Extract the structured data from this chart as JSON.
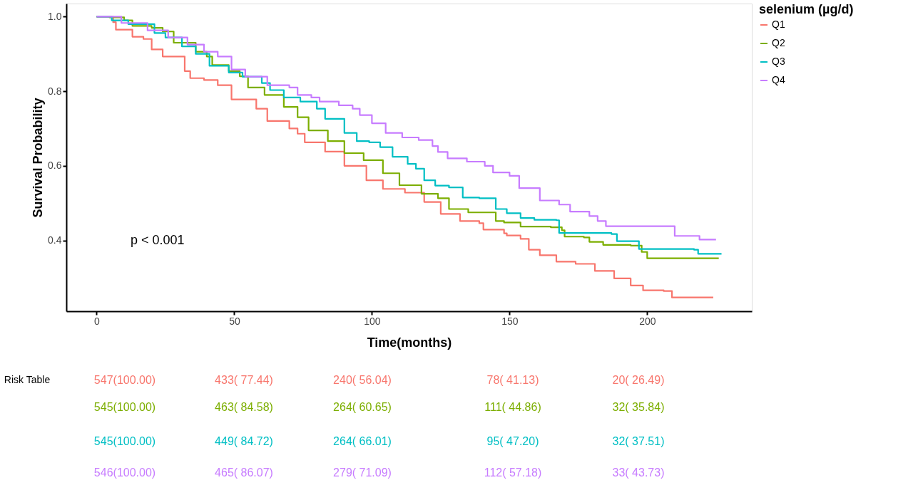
{
  "chart_data": {
    "type": "step",
    "xlabel": "Time(months)",
    "ylabel": "Survival Probability",
    "legend_title": "selenium (µg/d)",
    "legend": "right",
    "grid": false,
    "xlim": [
      -11,
      238
    ],
    "xticks": [
      0,
      50,
      100,
      150,
      200
    ],
    "ylim": [
      0.21,
      1.035
    ],
    "yticks": [
      {
        "value": 0.4,
        "label": "0.4"
      },
      {
        "value": 0.6,
        "label": "0.6"
      },
      {
        "value": 0.8,
        "label": "0.8"
      },
      {
        "value": 1.0,
        "label": "1.0"
      }
    ],
    "series": [
      {
        "name": "Q1",
        "color": "#f8766d",
        "x": [
          0,
          6,
          7,
          13,
          17,
          20,
          24,
          32,
          34,
          39,
          44,
          49,
          58,
          62,
          70,
          73,
          75.6,
          83,
          90,
          98,
          104,
          112,
          119,
          125,
          132,
          139,
          140.5,
          148,
          149,
          154,
          157,
          161,
          167,
          174,
          181,
          188,
          194,
          198.5,
          206,
          209,
          224
        ],
        "values": [
          1.0,
          0.985,
          0.965,
          0.946,
          0.94,
          0.912,
          0.893,
          0.854,
          0.835,
          0.83,
          0.816,
          0.778,
          0.753,
          0.72,
          0.7,
          0.686,
          0.663,
          0.638,
          0.6,
          0.561,
          0.538,
          0.528,
          0.503,
          0.471,
          0.452,
          0.446,
          0.429,
          0.419,
          0.413,
          0.404,
          0.375,
          0.36,
          0.343,
          0.337,
          0.318,
          0.298,
          0.279,
          0.266,
          0.264,
          0.247,
          0.247
        ]
      },
      {
        "name": "Q2",
        "color": "#7cae00",
        "x": [
          0,
          4.7,
          10,
          13,
          20,
          24,
          28,
          36,
          40,
          42,
          48,
          52,
          55,
          61,
          68,
          73,
          77,
          84,
          90,
          97,
          104,
          110,
          118,
          124,
          128,
          135,
          145,
          148,
          154,
          165,
          169,
          170,
          177,
          179,
          184,
          194,
          198,
          200,
          226
        ],
        "values": [
          1.0,
          0.998,
          0.99,
          0.975,
          0.97,
          0.96,
          0.93,
          0.906,
          0.893,
          0.87,
          0.854,
          0.84,
          0.81,
          0.79,
          0.758,
          0.73,
          0.695,
          0.666,
          0.634,
          0.615,
          0.58,
          0.548,
          0.525,
          0.513,
          0.484,
          0.475,
          0.452,
          0.448,
          0.437,
          0.435,
          0.427,
          0.41,
          0.408,
          0.396,
          0.388,
          0.386,
          0.369,
          0.352,
          0.352
        ]
      },
      {
        "name": "Q3",
        "color": "#00bfc4",
        "x": [
          0,
          5.5,
          11.5,
          21,
          25,
          31,
          36,
          41,
          48,
          53,
          60,
          63,
          68,
          74,
          80,
          83,
          90,
          94.5,
          99,
          103,
          107.5,
          113,
          116,
          119,
          123,
          128,
          133,
          139,
          145,
          149,
          154,
          159,
          167,
          168,
          187,
          189,
          197,
          217,
          218.5,
          227
        ],
        "values": [
          1.0,
          0.99,
          0.98,
          0.956,
          0.944,
          0.92,
          0.9,
          0.868,
          0.85,
          0.839,
          0.822,
          0.803,
          0.783,
          0.772,
          0.753,
          0.726,
          0.688,
          0.666,
          0.663,
          0.65,
          0.624,
          0.605,
          0.592,
          0.561,
          0.547,
          0.542,
          0.515,
          0.513,
          0.484,
          0.473,
          0.46,
          0.455,
          0.454,
          0.42,
          0.417,
          0.398,
          0.377,
          0.375,
          0.364,
          0.364
        ]
      },
      {
        "name": "Q4",
        "color": "#c77cff",
        "x": [
          0,
          9,
          18.5,
          26,
          33,
          39,
          44,
          49,
          54,
          62,
          70,
          73,
          78,
          81,
          88,
          93,
          95.6,
          100,
          105,
          111,
          117,
          122,
          124,
          127.5,
          134.5,
          141,
          144,
          150,
          153.5,
          159,
          161,
          168,
          172,
          178,
          179,
          182,
          185,
          206,
          210,
          216,
          219,
          225
        ],
        "values": [
          1.0,
          0.983,
          0.963,
          0.944,
          0.925,
          0.906,
          0.893,
          0.858,
          0.839,
          0.816,
          0.81,
          0.79,
          0.783,
          0.772,
          0.762,
          0.753,
          0.736,
          0.714,
          0.688,
          0.676,
          0.669,
          0.653,
          0.637,
          0.62,
          0.611,
          0.6,
          0.582,
          0.573,
          0.54,
          0.54,
          0.507,
          0.496,
          0.477,
          0.477,
          0.465,
          0.452,
          0.438,
          0.438,
          0.412,
          0.412,
          0.402,
          0.402
        ]
      }
    ],
    "annotations": [
      "p < 0.001",
      "Risk Table",
      "547(100.00)",
      "433( 77.44)",
      "240( 56.04)",
      "78( 41.13)",
      "20( 26.49)",
      "545(100.00)",
      "463( 84.58)",
      "264( 60.65)",
      "111( 44.86)",
      "32( 35.84)",
      "545(100.00)",
      "449( 84.72)",
      "264( 66.01)",
      "95( 47.20)",
      "32( 37.51)",
      "546(100.00)",
      "465( 86.07)",
      "279( 71.09)",
      "112( 57.18)",
      "33( 43.73)"
    ]
  }
}
